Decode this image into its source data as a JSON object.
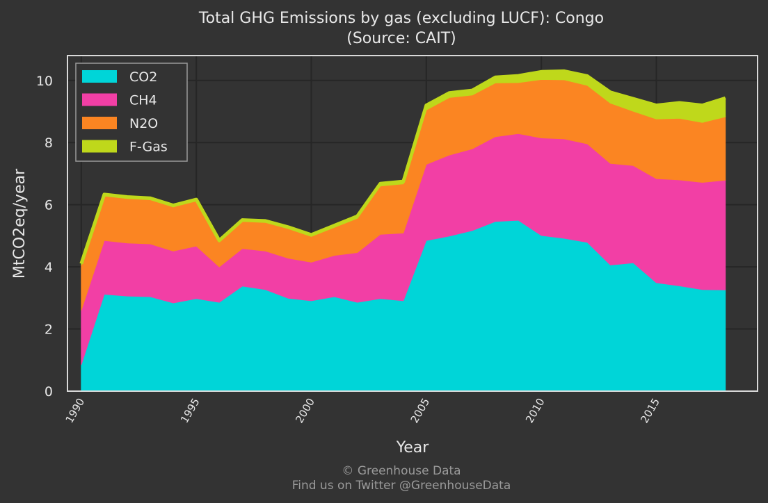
{
  "chart_data": {
    "type": "area",
    "stacked": true,
    "title": "Total GHG Emissions by gas (excluding LUCF): Congo",
    "subtitle": "(Source: CAIT)",
    "xlabel": "Year",
    "ylabel": "MtCO2eq/year",
    "xlim": [
      1989.4,
      2019.4
    ],
    "ylim": [
      0,
      10.8
    ],
    "yticks": [
      0,
      2,
      4,
      6,
      8,
      10
    ],
    "xticks": [
      1990,
      1995,
      2000,
      2005,
      2010,
      2015
    ],
    "grid": true,
    "legend_position": "top-left",
    "x": [
      1990,
      1991,
      1992,
      1993,
      1994,
      1995,
      1996,
      1997,
      1998,
      1999,
      2000,
      2001,
      2002,
      2003,
      2004,
      2005,
      2006,
      2007,
      2008,
      2009,
      2010,
      2011,
      2012,
      2013,
      2014,
      2015,
      2016,
      2017,
      2018
    ],
    "series": [
      {
        "name": "CO2",
        "color": "#00d5d8",
        "values": [
          0.85,
          3.12,
          3.06,
          3.04,
          2.84,
          2.98,
          2.86,
          3.38,
          3.27,
          2.99,
          2.91,
          3.04,
          2.86,
          2.98,
          2.91,
          4.85,
          4.99,
          5.17,
          5.46,
          5.5,
          5.01,
          4.92,
          4.79,
          4.06,
          4.13,
          3.49,
          3.39,
          3.27,
          3.26
        ]
      },
      {
        "name": "CH4",
        "color": "#f23fa5",
        "values": [
          1.75,
          1.73,
          1.71,
          1.7,
          1.67,
          1.69,
          1.14,
          1.21,
          1.24,
          1.29,
          1.24,
          1.33,
          1.6,
          2.07,
          2.18,
          2.45,
          2.61,
          2.63,
          2.73,
          2.79,
          3.14,
          3.2,
          3.17,
          3.27,
          3.13,
          3.35,
          3.41,
          3.45,
          3.53
        ]
      },
      {
        "name": "N2O",
        "color": "#fb8522",
        "values": [
          1.45,
          1.43,
          1.43,
          1.42,
          1.42,
          1.45,
          0.8,
          0.87,
          0.92,
          0.95,
          0.83,
          0.9,
          1.1,
          1.55,
          1.58,
          1.75,
          1.85,
          1.73,
          1.73,
          1.64,
          1.88,
          1.9,
          1.88,
          1.94,
          1.75,
          1.92,
          1.98,
          1.93,
          2.04
        ]
      },
      {
        "name": "F-Gas",
        "color": "#bfd81b",
        "values": [
          0.05,
          0.05,
          0.05,
          0.05,
          0.05,
          0.05,
          0.05,
          0.05,
          0.05,
          0.05,
          0.05,
          0.06,
          0.07,
          0.08,
          0.08,
          0.15,
          0.15,
          0.15,
          0.18,
          0.22,
          0.25,
          0.28,
          0.3,
          0.35,
          0.4,
          0.44,
          0.5,
          0.55,
          0.6
        ]
      }
    ]
  },
  "footer": {
    "line1": "© Greenhouse Data",
    "line2": "Find us on Twitter @GreenhouseData"
  }
}
